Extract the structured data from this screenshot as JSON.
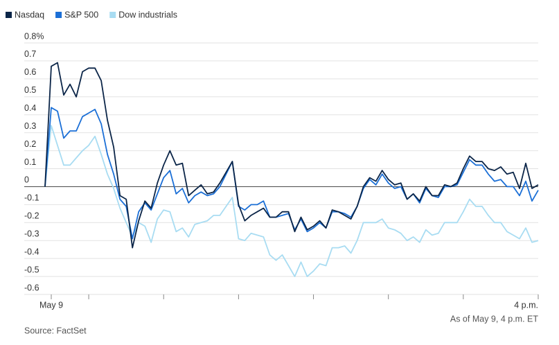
{
  "chart_data": {
    "type": "line",
    "series": [
      {
        "name": "Nasdaq",
        "color": "#0b2548",
        "values": [
          0,
          0.67,
          0.69,
          0.51,
          0.57,
          0.5,
          0.64,
          0.66,
          0.66,
          0.59,
          0.37,
          0.22,
          -0.05,
          -0.07,
          -0.34,
          -0.19,
          -0.08,
          -0.12,
          0.02,
          0.12,
          0.2,
          0.12,
          0.13,
          -0.05,
          -0.02,
          0.01,
          -0.04,
          -0.03,
          0.02,
          0.08,
          0.14,
          -0.1,
          -0.19,
          -0.16,
          -0.14,
          -0.12,
          -0.17,
          -0.17,
          -0.14,
          -0.14,
          -0.25,
          -0.17,
          -0.24,
          -0.22,
          -0.19,
          -0.23,
          -0.13,
          -0.14,
          -0.16,
          -0.18,
          -0.11,
          0,
          0.05,
          0.03,
          0.09,
          0.04,
          0.01,
          0.02,
          -0.07,
          -0.04,
          -0.08,
          0,
          -0.05,
          -0.05,
          0.01,
          0,
          0.02,
          0.1,
          0.17,
          0.14,
          0.14,
          0.1,
          0.09,
          0.11,
          0.07,
          0.08,
          -0.01,
          0.13,
          -0.01,
          0.01
        ]
      },
      {
        "name": "S&P 500",
        "color": "#1b6fd6",
        "values": [
          0,
          0.44,
          0.42,
          0.27,
          0.31,
          0.31,
          0.39,
          0.41,
          0.43,
          0.35,
          0.18,
          0.07,
          -0.07,
          -0.11,
          -0.29,
          -0.14,
          -0.09,
          -0.13,
          -0.04,
          0.05,
          0.09,
          -0.04,
          -0.01,
          -0.09,
          -0.05,
          -0.03,
          -0.05,
          -0.04,
          0,
          0.07,
          0.14,
          -0.11,
          -0.13,
          -0.1,
          -0.1,
          -0.08,
          -0.17,
          -0.17,
          -0.16,
          -0.15,
          -0.24,
          -0.18,
          -0.25,
          -0.23,
          -0.2,
          -0.23,
          -0.14,
          -0.14,
          -0.15,
          -0.17,
          -0.11,
          -0.01,
          0.04,
          0.01,
          0.07,
          0.02,
          -0.01,
          0,
          -0.07,
          -0.04,
          -0.09,
          -0.01,
          -0.05,
          -0.06,
          0,
          0,
          0.01,
          0.08,
          0.15,
          0.12,
          0.12,
          0.07,
          0.03,
          0.04,
          0,
          0,
          -0.05,
          0.03,
          -0.08,
          -0.02
        ]
      },
      {
        "name": "Dow industrials",
        "color": "#a8dcf2",
        "values": [
          0,
          0.34,
          0.23,
          0.12,
          0.12,
          0.16,
          0.2,
          0.23,
          0.28,
          0.18,
          0.07,
          -0.01,
          -0.12,
          -0.2,
          -0.28,
          -0.2,
          -0.22,
          -0.31,
          -0.18,
          -0.13,
          -0.14,
          -0.25,
          -0.23,
          -0.28,
          -0.21,
          -0.2,
          -0.19,
          -0.16,
          -0.16,
          -0.11,
          -0.06,
          -0.29,
          -0.3,
          -0.26,
          -0.27,
          -0.28,
          -0.38,
          -0.41,
          -0.38,
          -0.44,
          -0.5,
          -0.42,
          -0.5,
          -0.47,
          -0.43,
          -0.44,
          -0.34,
          -0.34,
          -0.33,
          -0.37,
          -0.3,
          -0.2,
          -0.2,
          -0.2,
          -0.18,
          -0.23,
          -0.24,
          -0.26,
          -0.3,
          -0.28,
          -0.31,
          -0.24,
          -0.27,
          -0.26,
          -0.2,
          -0.2,
          -0.2,
          -0.14,
          -0.07,
          -0.11,
          -0.11,
          -0.16,
          -0.2,
          -0.2,
          -0.25,
          -0.27,
          -0.29,
          -0.23,
          -0.31,
          -0.3
        ]
      }
    ],
    "categories": [
      null,
      "May 9",
      null,
      null,
      null,
      null,
      null,
      null,
      null,
      null,
      null,
      null,
      null,
      null,
      null,
      null,
      null,
      null,
      null,
      null,
      null,
      null,
      null,
      null,
      null,
      null,
      null,
      null,
      null,
      null,
      null,
      null,
      null,
      null,
      null,
      null,
      null,
      null,
      null,
      null,
      null,
      null,
      null,
      null,
      null,
      null,
      null,
      null,
      null,
      null,
      null,
      null,
      null,
      null,
      null,
      null,
      null,
      null,
      null,
      null,
      null,
      null,
      null,
      null,
      null,
      null,
      null,
      null,
      null,
      null,
      null,
      null,
      null,
      null,
      null,
      null,
      null,
      null,
      null,
      "4 p.m."
    ],
    "ylim": [
      -0.6,
      0.8
    ],
    "yticks": [
      {
        "value": 0.8,
        "label": "0.8%"
      },
      0.7,
      0.6,
      0.5,
      0.4,
      0.3,
      0.2,
      0.1,
      0,
      -0.1,
      -0.2,
      -0.3,
      -0.4,
      -0.5,
      -0.6
    ],
    "grid": true,
    "legend": "top-left",
    "notes": [
      "As of May 9, 4 p.m. ET"
    ],
    "source": "Source: FactSet"
  }
}
